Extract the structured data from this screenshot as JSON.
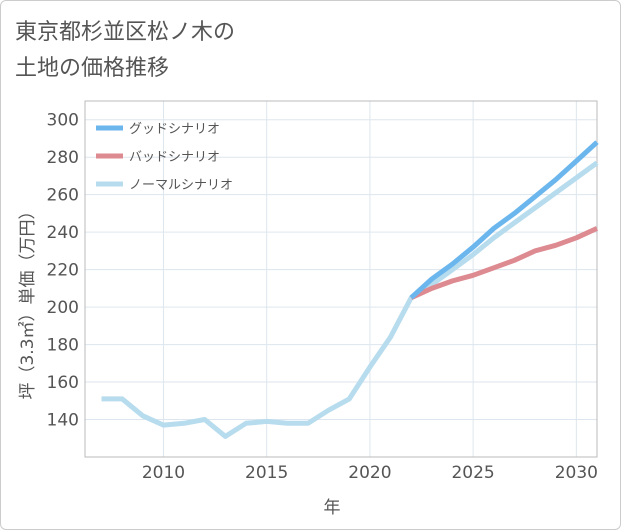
{
  "title": "東京都杉並区松ノ木の\n土地の価格推移",
  "chart_data": {
    "type": "line",
    "title": "東京都杉並区松ノ木の土地の価格推移",
    "xlabel": "年",
    "ylabel": "坪（3.3㎡）単価（万円）",
    "xlim": [
      2006.2,
      2031
    ],
    "ylim": [
      120,
      310
    ],
    "xticks": [
      2010,
      2015,
      2020,
      2025,
      2030
    ],
    "yticks": [
      140,
      160,
      180,
      200,
      220,
      240,
      260,
      280,
      300
    ],
    "legend_position": "top-left",
    "series": [
      {
        "name": "グッドシナリオ",
        "color": "#6cb6ee",
        "x": [
          2022,
          2023,
          2024,
          2025,
          2026,
          2027,
          2028,
          2029,
          2030,
          2031
        ],
        "values": [
          205,
          215,
          223,
          232,
          242,
          250,
          259,
          268,
          278,
          288
        ]
      },
      {
        "name": "バッドシナリオ",
        "color": "#dd8a91",
        "x": [
          2022,
          2023,
          2024,
          2025,
          2026,
          2027,
          2028,
          2029,
          2030,
          2031
        ],
        "values": [
          205,
          210,
          214,
          217,
          221,
          225,
          230,
          233,
          237,
          242
        ]
      },
      {
        "name": "ノーマルシナリオ",
        "color": "#b7dcee",
        "x": [
          2007,
          2008,
          2009,
          2010,
          2011,
          2012,
          2013,
          2014,
          2015,
          2016,
          2017,
          2018,
          2019,
          2020,
          2021,
          2022,
          2023,
          2024,
          2025,
          2026,
          2027,
          2028,
          2029,
          2030,
          2031
        ],
        "values": [
          151,
          151,
          142,
          137,
          138,
          140,
          131,
          138,
          139,
          138,
          138,
          145,
          151,
          168,
          184,
          205,
          212,
          220,
          228,
          237,
          245,
          253,
          261,
          269,
          277
        ]
      }
    ]
  }
}
